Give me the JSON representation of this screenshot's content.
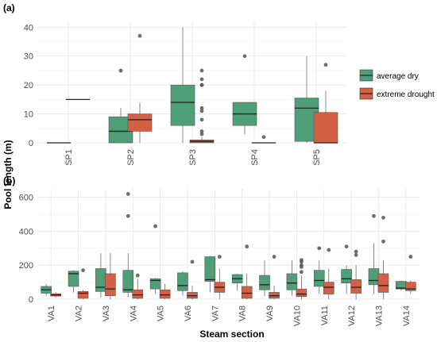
{
  "figure": {
    "ylabel": "Pool length (m)",
    "xlabel": "Steam section"
  },
  "legend": {
    "items": [
      {
        "label": "average dry",
        "color": "#4e9f77"
      },
      {
        "label": "extreme drought",
        "color": "#d35f45"
      }
    ]
  },
  "chart_data": [
    {
      "type": "box",
      "panel_label": "(a)",
      "ylim": [
        0,
        42
      ],
      "yticks": [
        0,
        10,
        20,
        30,
        40
      ],
      "grid": true,
      "categories": [
        "SP1",
        "SP2",
        "SP3",
        "SP4",
        "SP5"
      ],
      "series": [
        {
          "name": "average dry",
          "color": "#4e9f77",
          "boxes": [
            {
              "category": "SP1",
              "min": 0,
              "q1": 0,
              "median": 0,
              "q3": 0,
              "max": 0,
              "outliers": []
            },
            {
              "category": "SP2",
              "min": 0,
              "q1": 0,
              "median": 4,
              "q3": 9,
              "max": 12,
              "outliers": [
                25
              ]
            },
            {
              "category": "SP3",
              "min": 0,
              "q1": 6,
              "median": 14,
              "q3": 20,
              "max": 40,
              "outliers": []
            },
            {
              "category": "SP4",
              "min": 3,
              "q1": 6,
              "median": 10,
              "q3": 14,
              "max": 14,
              "outliers": [
                30
              ]
            },
            {
              "category": "SP5",
              "min": 0,
              "q1": 0.5,
              "median": 12,
              "q3": 15.5,
              "max": 30,
              "outliers": []
            }
          ]
        },
        {
          "name": "extreme drought",
          "color": "#d35f45",
          "boxes": [
            {
              "category": "SP1",
              "min": 15,
              "q1": 15,
              "median": 15,
              "q3": 15,
              "max": 15,
              "outliers": []
            },
            {
              "category": "SP2",
              "min": 0,
              "q1": 4,
              "median": 8,
              "q3": 10,
              "max": 14,
              "outliers": [
                37
              ]
            },
            {
              "category": "SP3",
              "min": 0,
              "q1": 0,
              "median": 0.5,
              "q3": 1,
              "max": 2,
              "outliers": [
                3,
                4,
                8,
                11,
                12,
                20,
                20,
                22,
                25
              ]
            },
            {
              "category": "SP4",
              "min": 0,
              "q1": 0,
              "median": 0,
              "q3": 0,
              "max": 0,
              "outliers": [
                2
              ]
            },
            {
              "category": "SP5",
              "min": 0,
              "q1": 0,
              "median": 0,
              "q3": 10.5,
              "max": 18,
              "outliers": [
                27
              ]
            }
          ]
        }
      ]
    },
    {
      "type": "box",
      "panel_label": "(b)",
      "ylim": [
        0,
        650
      ],
      "yticks": [
        0,
        200,
        400,
        600
      ],
      "grid": true,
      "categories": [
        "VA1",
        "VA2",
        "VA3",
        "VA4",
        "VA5",
        "VA6",
        "VA7",
        "VA8",
        "VA9",
        "VA10",
        "VA11",
        "VA12",
        "VA13",
        "VA14"
      ],
      "series": [
        {
          "name": "average dry",
          "color": "#4e9f77",
          "boxes": [
            {
              "category": "VA1",
              "min": 20,
              "q1": 35,
              "median": 55,
              "q3": 75,
              "max": 90,
              "outliers": []
            },
            {
              "category": "VA2",
              "min": 40,
              "q1": 75,
              "median": 150,
              "q3": 165,
              "max": 170,
              "outliers": []
            },
            {
              "category": "VA3",
              "min": 10,
              "q1": 45,
              "median": 70,
              "q3": 180,
              "max": 270,
              "outliers": []
            },
            {
              "category": "VA4",
              "min": 10,
              "q1": 40,
              "median": 55,
              "q3": 170,
              "max": 270,
              "outliers": [
                490,
                620
              ]
            },
            {
              "category": "VA5",
              "min": 30,
              "q1": 60,
              "median": 110,
              "q3": 120,
              "max": 125,
              "outliers": [
                430
              ]
            },
            {
              "category": "VA6",
              "min": 20,
              "q1": 50,
              "median": 80,
              "q3": 155,
              "max": 165,
              "outliers": []
            },
            {
              "category": "VA7",
              "min": 40,
              "q1": 105,
              "median": 115,
              "q3": 250,
              "max": 255,
              "outliers": []
            },
            {
              "category": "VA8",
              "min": 50,
              "q1": 95,
              "median": 120,
              "q3": 145,
              "max": 150,
              "outliers": []
            },
            {
              "category": "VA9",
              "min": 20,
              "q1": 55,
              "median": 85,
              "q3": 140,
              "max": 230,
              "outliers": []
            },
            {
              "category": "VA10",
              "min": 20,
              "q1": 55,
              "median": 95,
              "q3": 150,
              "max": 230,
              "outliers": []
            },
            {
              "category": "VA11",
              "min": 30,
              "q1": 75,
              "median": 110,
              "q3": 170,
              "max": 230,
              "outliers": [
                300
              ]
            },
            {
              "category": "VA12",
              "min": 30,
              "q1": 95,
              "median": 120,
              "q3": 175,
              "max": 200,
              "outliers": [
                310
              ]
            },
            {
              "category": "VA13",
              "min": 30,
              "q1": 85,
              "median": 110,
              "q3": 180,
              "max": 330,
              "outliers": [
                490
              ]
            },
            {
              "category": "VA14",
              "min": 50,
              "q1": 60,
              "median": 65,
              "q3": 105,
              "max": 110,
              "outliers": []
            }
          ]
        },
        {
          "name": "extreme drought",
          "color": "#d35f45",
          "boxes": [
            {
              "category": "VA1",
              "min": 10,
              "q1": 18,
              "median": 25,
              "q3": 32,
              "max": 40,
              "outliers": []
            },
            {
              "category": "VA2",
              "min": 0,
              "q1": 5,
              "median": 35,
              "q3": 45,
              "max": 55,
              "outliers": [
                170
              ]
            },
            {
              "category": "VA3",
              "min": 0,
              "q1": 20,
              "median": 60,
              "q3": 150,
              "max": 270,
              "outliers": []
            },
            {
              "category": "VA4",
              "min": 0,
              "q1": 5,
              "median": 25,
              "q3": 55,
              "max": 120,
              "outliers": [
                140
              ]
            },
            {
              "category": "VA5",
              "min": 0,
              "q1": 5,
              "median": 25,
              "q3": 55,
              "max": 90,
              "outliers": []
            },
            {
              "category": "VA6",
              "min": 0,
              "q1": 5,
              "median": 20,
              "q3": 40,
              "max": 80,
              "outliers": [
                220
              ]
            },
            {
              "category": "VA7",
              "min": 0,
              "q1": 40,
              "median": 70,
              "q3": 100,
              "max": 180,
              "outliers": [
                250
              ]
            },
            {
              "category": "VA8",
              "min": 0,
              "q1": 5,
              "median": 35,
              "q3": 75,
              "max": 150,
              "outliers": [
                310
              ]
            },
            {
              "category": "VA9",
              "min": 0,
              "q1": 5,
              "median": 20,
              "q3": 40,
              "max": 80,
              "outliers": [
                250
              ]
            },
            {
              "category": "VA10",
              "min": 0,
              "q1": 15,
              "median": 30,
              "q3": 60,
              "max": 140,
              "outliers": [
                160,
                190,
                200,
                220,
                230
              ]
            },
            {
              "category": "VA11",
              "min": 0,
              "q1": 30,
              "median": 70,
              "q3": 100,
              "max": 180,
              "outliers": [
                290
              ]
            },
            {
              "category": "VA12",
              "min": 0,
              "q1": 35,
              "median": 70,
              "q3": 115,
              "max": 200,
              "outliers": [
                260,
                280
              ]
            },
            {
              "category": "VA13",
              "min": 0,
              "q1": 40,
              "median": 80,
              "q3": 150,
              "max": 230,
              "outliers": [
                340,
                480
              ]
            },
            {
              "category": "VA14",
              "min": 30,
              "q1": 50,
              "median": 60,
              "q3": 100,
              "max": 110,
              "outliers": [
                250
              ]
            }
          ]
        }
      ]
    }
  ]
}
